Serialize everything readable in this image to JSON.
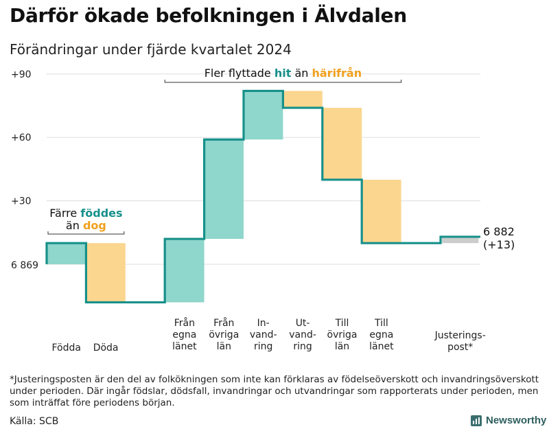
{
  "title": "Därför ökade befolkningen i Älvdalen",
  "subtitle": "Förändringar under fjärde kvartalet 2024",
  "footnote": "*Justeringsposten är den del av folkökningen som inte kan förklaras av födelseöverskott och invandringsöverskott under perioden. Där ingår födslar, dödsfall, invandringar och utvandringar som rapporterats under perioden, men som inträffat före periodens början.",
  "source": "Källa: SCB",
  "brand": "Newsworthy",
  "colors": {
    "increase": "#8fd6cc",
    "decrease": "#fbd68f",
    "adjustment": "#cccccc",
    "line": "#17908a",
    "teal_text": "#17908a",
    "orange_text": "#f0a01e",
    "grid": "#dddddd"
  },
  "chart_data": {
    "type": "waterfall",
    "title": "Därför ökade befolkningen i Älvdalen",
    "subtitle": "Förändringar under fjärde kvartalet 2024",
    "start_value": 6869,
    "end_value": 6882,
    "start_label": "6 869",
    "end_label": "6 882",
    "end_change_label": "(+13)",
    "ylim": [
      -18,
      92
    ],
    "yticks": [
      {
        "v": 30,
        "label": "+30"
      },
      {
        "v": 60,
        "label": "+60"
      },
      {
        "v": 90,
        "label": "+90"
      }
    ],
    "steps": [
      {
        "lines": [
          "Födda"
        ],
        "change": 10,
        "kind": "increase"
      },
      {
        "lines": [
          "Döda"
        ],
        "change": -28,
        "kind": "decrease"
      },
      {
        "lines": [],
        "change": 0,
        "kind": "gap"
      },
      {
        "lines": [
          "Från",
          "egna",
          "länet"
        ],
        "change": 30,
        "kind": "increase"
      },
      {
        "lines": [
          "Från",
          "övriga",
          "län"
        ],
        "change": 47,
        "kind": "increase"
      },
      {
        "lines": [
          "In-",
          "vand-",
          "ring"
        ],
        "change": 23,
        "kind": "increase"
      },
      {
        "lines": [
          "Ut-",
          "vand-",
          "ring"
        ],
        "change": -8,
        "kind": "decrease"
      },
      {
        "lines": [
          "Till",
          "övriga",
          "län"
        ],
        "change": -34,
        "kind": "decrease"
      },
      {
        "lines": [
          "Till",
          "egna",
          "länet"
        ],
        "change": -30,
        "kind": "decrease"
      },
      {
        "lines": [],
        "change": 0,
        "kind": "gap"
      },
      {
        "lines": [
          "Justerings-",
          "post*"
        ],
        "change": 3,
        "kind": "adjustment"
      }
    ],
    "annotations": [
      {
        "id": "births",
        "line1_parts": [
          {
            "t": "Färre ",
            "c": "normal"
          },
          {
            "t": "föddes",
            "c": "teal"
          }
        ],
        "line2_parts": [
          {
            "t": "än ",
            "c": "normal"
          },
          {
            "t": "dog",
            "c": "orange"
          }
        ]
      },
      {
        "id": "migration",
        "line1_parts": [
          {
            "t": "Fler flyttade ",
            "c": "normal"
          },
          {
            "t": "hit",
            "c": "teal"
          },
          {
            "t": " än ",
            "c": "normal"
          },
          {
            "t": "härifrån",
            "c": "orange"
          }
        ]
      }
    ]
  }
}
